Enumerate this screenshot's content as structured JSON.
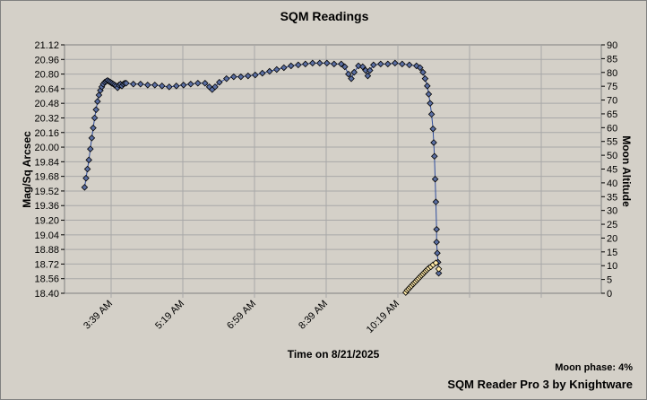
{
  "chart_data": {
    "type": "scatter",
    "title": "SQM Readings",
    "xlabel": "Time on 8/21/2025",
    "ylabel": "Mag/Sq Arcsec",
    "y2label": "Moon Altitude",
    "x_ticks": [
      "3:39 AM",
      "5:19 AM",
      "6:59 AM",
      "8:39 AM",
      "10:19 AM"
    ],
    "y_ticks": [
      "18.40",
      "18.56",
      "18.72",
      "18.88",
      "19.04",
      "19.20",
      "19.36",
      "19.52",
      "19.68",
      "19.84",
      "20.00",
      "20.16",
      "20.32",
      "20.48",
      "20.64",
      "20.80",
      "20.96",
      "21.12"
    ],
    "y2_ticks": [
      "0",
      "5",
      "10",
      "15",
      "20",
      "25",
      "30",
      "35",
      "40",
      "45",
      "50",
      "55",
      "60",
      "65",
      "70",
      "75",
      "80",
      "85",
      "90"
    ],
    "ylim": [
      18.4,
      21.12
    ],
    "y2lim": [
      0,
      90
    ],
    "grid": true,
    "series": [
      {
        "color": "#5b6fa3",
        "points": [
          [
            "3:02",
            19.56
          ],
          [
            "3:04",
            19.66
          ],
          [
            "3:06",
            19.76
          ],
          [
            "3:08",
            19.86
          ],
          [
            "3:10",
            19.98
          ],
          [
            "3:12",
            20.1
          ],
          [
            "3:14",
            20.21
          ],
          [
            "3:16",
            20.32
          ],
          [
            "3:18",
            20.41
          ],
          [
            "3:20",
            20.5
          ],
          [
            "3:22",
            20.57
          ],
          [
            "3:24",
            20.62
          ],
          [
            "3:26",
            20.66
          ],
          [
            "3:28",
            20.69
          ],
          [
            "3:30",
            20.71
          ],
          [
            "3:32",
            20.72
          ],
          [
            "3:34",
            20.73
          ],
          [
            "3:36",
            20.72
          ],
          [
            "3:38",
            20.71
          ],
          [
            "3:40",
            20.7
          ],
          [
            "3:42",
            20.69
          ],
          [
            "3:44",
            20.68
          ],
          [
            "3:46",
            20.67
          ],
          [
            "3:48",
            20.65
          ],
          [
            "3:50",
            20.68
          ],
          [
            "3:52",
            20.69
          ],
          [
            "3:54",
            20.67
          ],
          [
            "3:56",
            20.69
          ],
          [
            "3:58",
            20.7
          ],
          [
            "4:00",
            20.7
          ],
          [
            "4:10",
            20.69
          ],
          [
            "4:20",
            20.69
          ],
          [
            "4:30",
            20.68
          ],
          [
            "4:40",
            20.68
          ],
          [
            "4:50",
            20.67
          ],
          [
            "5:00",
            20.66
          ],
          [
            "5:10",
            20.67
          ],
          [
            "5:20",
            20.68
          ],
          [
            "5:30",
            20.69
          ],
          [
            "5:40",
            20.7
          ],
          [
            "5:50",
            20.7
          ],
          [
            "5:56",
            20.66
          ],
          [
            "6:00",
            20.63
          ],
          [
            "6:04",
            20.66
          ],
          [
            "6:10",
            20.71
          ],
          [
            "6:20",
            20.75
          ],
          [
            "6:30",
            20.77
          ],
          [
            "6:40",
            20.77
          ],
          [
            "6:50",
            20.78
          ],
          [
            "7:00",
            20.79
          ],
          [
            "7:10",
            20.81
          ],
          [
            "7:20",
            20.83
          ],
          [
            "7:30",
            20.85
          ],
          [
            "7:40",
            20.87
          ],
          [
            "7:50",
            20.89
          ],
          [
            "8:00",
            20.9
          ],
          [
            "8:10",
            20.91
          ],
          [
            "8:20",
            20.92
          ],
          [
            "8:30",
            20.92
          ],
          [
            "8:40",
            20.92
          ],
          [
            "8:50",
            20.91
          ],
          [
            "9:00",
            20.91
          ],
          [
            "9:05",
            20.88
          ],
          [
            "9:10",
            20.8
          ],
          [
            "9:14",
            20.75
          ],
          [
            "9:18",
            20.82
          ],
          [
            "9:24",
            20.89
          ],
          [
            "9:30",
            20.88
          ],
          [
            "9:34",
            20.84
          ],
          [
            "9:37",
            20.78
          ],
          [
            "9:40",
            20.84
          ],
          [
            "9:45",
            20.9
          ],
          [
            "9:55",
            20.91
          ],
          [
            "10:05",
            20.91
          ],
          [
            "10:15",
            20.92
          ],
          [
            "10:25",
            20.91
          ],
          [
            "10:35",
            20.9
          ],
          [
            "10:45",
            20.89
          ],
          [
            "10:50",
            20.87
          ],
          [
            "10:54",
            20.82
          ],
          [
            "10:57",
            20.75
          ],
          [
            "11:00",
            20.67
          ],
          [
            "11:02",
            20.58
          ],
          [
            "11:04",
            20.48
          ],
          [
            "11:06",
            20.36
          ],
          [
            "11:08",
            20.2
          ],
          [
            "11:09",
            20.05
          ],
          [
            "11:10",
            19.9
          ],
          [
            "11:11",
            19.65
          ],
          [
            "11:12",
            19.4
          ],
          [
            "11:13",
            19.1
          ],
          [
            "11:13",
            18.96
          ],
          [
            "11:14",
            18.84
          ],
          [
            "11:15",
            18.74
          ],
          [
            "11:16",
            18.62
          ]
        ]
      },
      {
        "color": "#ffe9a8",
        "axis": "right",
        "points": [
          [
            "10:30",
            0.3
          ],
          [
            "10:32",
            1.1
          ],
          [
            "10:34",
            1.6
          ],
          [
            "10:36",
            2.2
          ],
          [
            "10:38",
            2.7
          ],
          [
            "10:40",
            3.3
          ],
          [
            "10:42",
            3.8
          ],
          [
            "10:44",
            4.3
          ],
          [
            "10:46",
            4.9
          ],
          [
            "10:48",
            5.4
          ],
          [
            "10:50",
            6.0
          ],
          [
            "10:52",
            6.5
          ],
          [
            "10:54",
            7.0
          ],
          [
            "10:56",
            7.6
          ],
          [
            "10:58",
            8.1
          ],
          [
            "11:00",
            8.6
          ],
          [
            "11:02",
            9.1
          ],
          [
            "11:05",
            9.6
          ],
          [
            "11:08",
            10.3
          ],
          [
            "11:12",
            11.0
          ],
          [
            "11:16",
            8.8
          ]
        ]
      }
    ],
    "footer": {
      "moon_phase": "Moon phase: 4%",
      "credit": "SQM Reader Pro 3 by Knightware"
    }
  }
}
